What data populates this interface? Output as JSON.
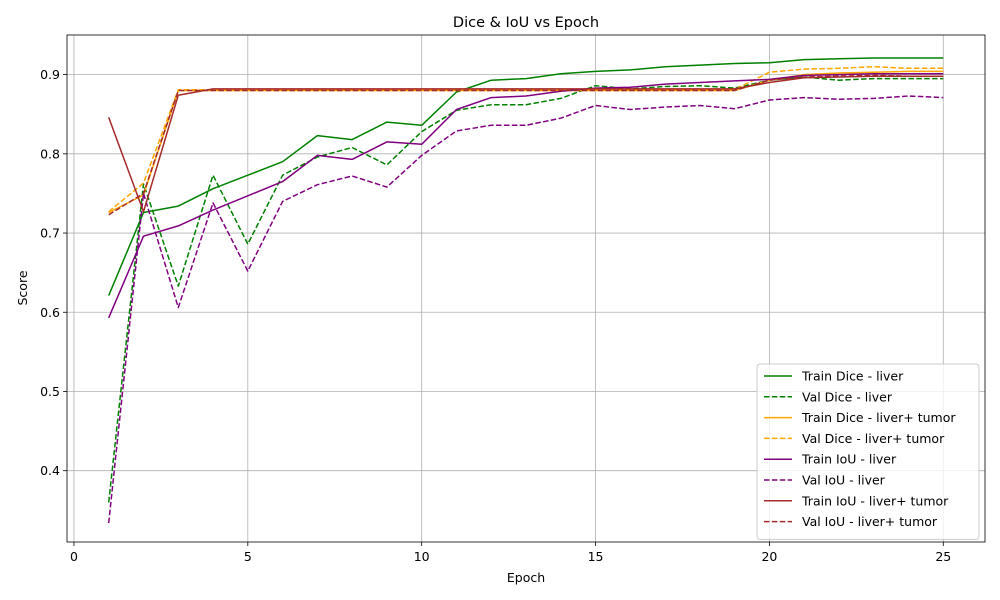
{
  "chart_data": {
    "type": "line",
    "title": "Dice & IoU vs Epoch",
    "xlabel": "Epoch",
    "ylabel": "Score",
    "xlim": [
      -0.2,
      26.2
    ],
    "ylim": [
      0.31,
      0.95
    ],
    "xticks": [
      0,
      5,
      10,
      15,
      20,
      25
    ],
    "yticks": [
      0.4,
      0.5,
      0.6,
      0.7,
      0.8,
      0.9
    ],
    "ytick_labels": [
      "0.4",
      "0.5",
      "0.6",
      "0.7",
      "0.8",
      "0.9"
    ],
    "grid": true,
    "legend_position": "lower-right",
    "x": [
      1,
      2,
      3,
      4,
      5,
      6,
      7,
      8,
      9,
      10,
      11,
      12,
      13,
      14,
      15,
      16,
      17,
      18,
      19,
      20,
      21,
      22,
      23,
      24,
      25
    ],
    "series": [
      {
        "name": "Train Dice - liver",
        "color": "#008000",
        "style": "solid",
        "values": [
          0.621,
          0.726,
          0.734,
          0.756,
          0.773,
          0.79,
          0.823,
          0.818,
          0.84,
          0.836,
          0.878,
          0.893,
          0.895,
          0.901,
          0.904,
          0.906,
          0.91,
          0.912,
          0.914,
          0.915,
          0.919,
          0.92,
          0.921,
          0.921,
          0.921
        ]
      },
      {
        "name": "Val Dice - liver",
        "color": "#008000",
        "style": "dashed",
        "values": [
          0.36,
          0.762,
          0.633,
          0.773,
          0.686,
          0.773,
          0.796,
          0.808,
          0.786,
          0.828,
          0.855,
          0.862,
          0.862,
          0.87,
          0.886,
          0.882,
          0.885,
          0.886,
          0.883,
          0.893,
          0.897,
          0.893,
          0.895,
          0.895,
          0.895
        ]
      },
      {
        "name": "Train Dice - liver+ tumor",
        "color": "#ffa500",
        "style": "solid",
        "values": [
          0.726,
          0.748,
          0.88,
          0.88,
          0.88,
          0.88,
          0.88,
          0.88,
          0.88,
          0.88,
          0.88,
          0.88,
          0.88,
          0.88,
          0.88,
          0.88,
          0.88,
          0.88,
          0.88,
          0.893,
          0.9,
          0.902,
          0.903,
          0.904,
          0.904
        ]
      },
      {
        "name": "Val Dice - liver+ tumor",
        "color": "#ffa500",
        "style": "dashed",
        "values": [
          0.727,
          0.763,
          0.881,
          0.881,
          0.881,
          0.881,
          0.881,
          0.881,
          0.881,
          0.881,
          0.881,
          0.881,
          0.881,
          0.881,
          0.881,
          0.881,
          0.881,
          0.881,
          0.881,
          0.903,
          0.907,
          0.908,
          0.91,
          0.908,
          0.908
        ]
      },
      {
        "name": "Train IoU - liver",
        "color": "#800080",
        "style": "solid",
        "values": [
          0.593,
          0.696,
          0.709,
          0.729,
          0.747,
          0.765,
          0.798,
          0.793,
          0.815,
          0.812,
          0.856,
          0.871,
          0.873,
          0.879,
          0.883,
          0.884,
          0.888,
          0.89,
          0.892,
          0.894,
          0.899,
          0.9,
          0.901,
          0.901,
          0.901
        ]
      },
      {
        "name": "Val IoU - liver",
        "color": "#800080",
        "style": "dashed",
        "values": [
          0.334,
          0.75,
          0.606,
          0.738,
          0.652,
          0.74,
          0.761,
          0.772,
          0.758,
          0.798,
          0.829,
          0.836,
          0.836,
          0.845,
          0.861,
          0.856,
          0.859,
          0.861,
          0.857,
          0.868,
          0.871,
          0.869,
          0.87,
          0.873,
          0.871
        ]
      },
      {
        "name": "Train IoU - liver+ tumor",
        "color": "#a52a2a",
        "style": "solid",
        "values": [
          0.846,
          0.727,
          0.874,
          0.882,
          0.882,
          0.882,
          0.882,
          0.882,
          0.882,
          0.882,
          0.882,
          0.882,
          0.882,
          0.882,
          0.882,
          0.882,
          0.882,
          0.882,
          0.882,
          0.89,
          0.896,
          0.897,
          0.898,
          0.898,
          0.898
        ]
      },
      {
        "name": "Val IoU - liver+ tumor",
        "color": "#a52a2a",
        "style": "dashed",
        "values": [
          0.723,
          0.75,
          0.88,
          0.88,
          0.88,
          0.88,
          0.88,
          0.88,
          0.88,
          0.88,
          0.88,
          0.88,
          0.88,
          0.88,
          0.88,
          0.88,
          0.88,
          0.88,
          0.88,
          0.893,
          0.897,
          0.898,
          0.899,
          0.898,
          0.898
        ]
      }
    ]
  }
}
